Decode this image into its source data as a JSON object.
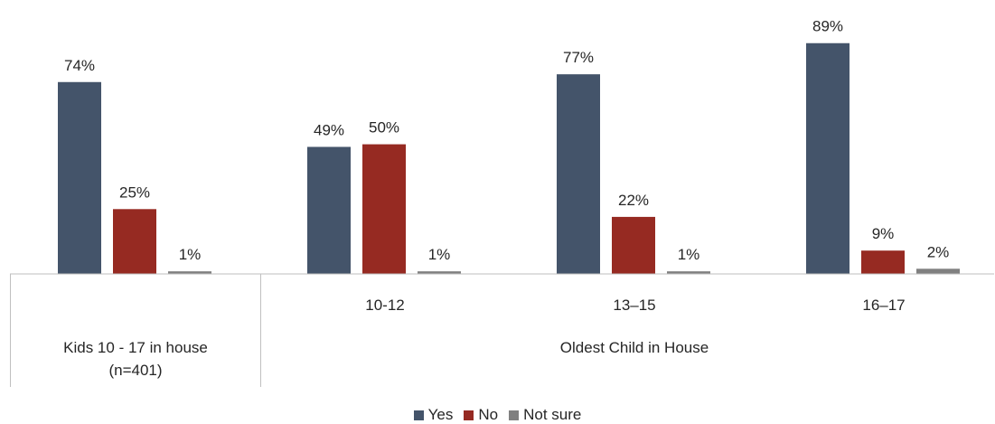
{
  "chart_data": {
    "type": "bar",
    "categories": [
      "",
      "10-12",
      "13–15",
      "16–17"
    ],
    "groups": [
      {
        "label": "Kids 10 - 17 in house\n(n=401)",
        "categories": [
          ""
        ]
      },
      {
        "label": "Oldest Child in House",
        "categories": [
          "10-12",
          "13–15",
          "16–17"
        ]
      }
    ],
    "series": [
      {
        "name": "Yes",
        "color": "#44546A",
        "values": [
          74,
          49,
          77,
          89
        ],
        "labels": [
          "74%",
          "49%",
          "77%",
          "89%"
        ]
      },
      {
        "name": "No",
        "color": "#962A22",
        "values": [
          25,
          50,
          22,
          9
        ],
        "labels": [
          "25%",
          "50%",
          "22%",
          "9%"
        ]
      },
      {
        "name": "Not sure",
        "color": "#808080",
        "values": [
          1,
          1,
          1,
          2
        ],
        "labels": [
          "1%",
          "1%",
          "1%",
          "2%"
        ]
      }
    ],
    "ylim": [
      0,
      100
    ],
    "grid": false,
    "legend_position": "bottom"
  }
}
